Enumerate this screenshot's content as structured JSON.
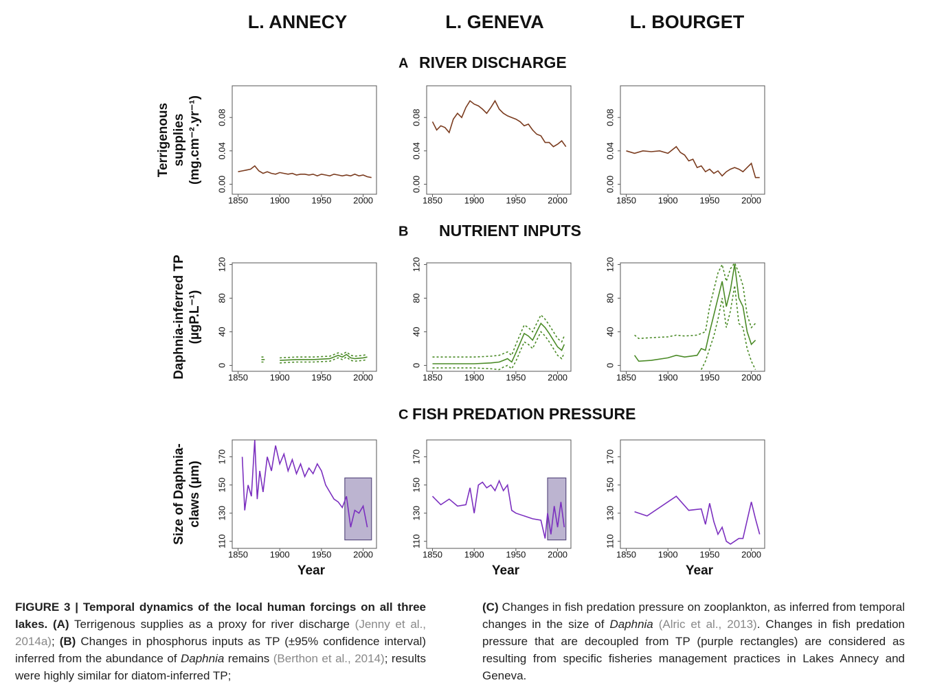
{
  "column_titles": [
    "L. ANNECY",
    "L. GENEVA",
    "L. BOURGET"
  ],
  "sections": [
    {
      "letter": "A",
      "title": "RIVER DISCHARGE"
    },
    {
      "letter": "B",
      "title": "NUTRIENT INPUTS"
    },
    {
      "letter": "C",
      "title": "FISH PREDATION PRESSURE"
    }
  ],
  "chart_data": [
    {
      "type": "line",
      "ylabel": [
        "Terrigenous",
        "supplies",
        "(mg.cm⁻².yr⁻¹)"
      ],
      "x": [
        1850,
        1855,
        1860,
        1865,
        1870,
        1875,
        1880,
        1885,
        1890,
        1895,
        1900,
        1905,
        1910,
        1915,
        1920,
        1925,
        1930,
        1935,
        1940,
        1945,
        1950,
        1955,
        1960,
        1965,
        1970,
        1975,
        1980,
        1985,
        1990,
        1995,
        2000,
        2005,
        2010
      ],
      "series": [
        {
          "color": "#7a3b1e",
          "values": [
            0.015,
            0.016,
            0.017,
            0.018,
            0.022,
            0.016,
            0.013,
            0.015,
            0.013,
            0.012,
            0.014,
            0.013,
            0.012,
            0.013,
            0.011,
            0.012,
            0.012,
            0.011,
            0.012,
            0.01,
            0.012,
            0.011,
            0.01,
            0.012,
            0.011,
            0.01,
            0.011,
            0.01,
            0.012,
            0.01,
            0.011,
            0.009,
            0.008
          ]
        }
      ],
      "xlim": [
        1843,
        2016
      ],
      "ylim": [
        -0.012,
        0.118
      ],
      "xticks": [
        1850,
        1900,
        1950,
        2000
      ],
      "yticks": [
        {
          "value": 0,
          "label": "0.00"
        },
        {
          "value": 0.04,
          "label": "0.04"
        },
        {
          "value": 0.08,
          "label": "0.08"
        }
      ]
    },
    {
      "type": "line",
      "x": [
        1850,
        1855,
        1860,
        1865,
        1870,
        1875,
        1880,
        1885,
        1890,
        1895,
        1900,
        1905,
        1910,
        1915,
        1920,
        1925,
        1930,
        1935,
        1940,
        1945,
        1950,
        1955,
        1960,
        1965,
        1970,
        1975,
        1980,
        1985,
        1990,
        1995,
        2000,
        2005,
        2010
      ],
      "series": [
        {
          "color": "#7a3b1e",
          "values": [
            0.075,
            0.065,
            0.07,
            0.068,
            0.062,
            0.078,
            0.085,
            0.08,
            0.092,
            0.1,
            0.096,
            0.094,
            0.09,
            0.085,
            0.092,
            0.1,
            0.09,
            0.085,
            0.082,
            0.08,
            0.078,
            0.075,
            0.07,
            0.072,
            0.065,
            0.06,
            0.058,
            0.05,
            0.05,
            0.045,
            0.048,
            0.052,
            0.045
          ]
        }
      ],
      "xlim": [
        1843,
        2016
      ],
      "ylim": [
        -0.012,
        0.118
      ],
      "xticks": [
        1850,
        1900,
        1950,
        2000
      ],
      "yticks": [
        {
          "value": 0,
          "label": "0.00"
        },
        {
          "value": 0.04,
          "label": "0.04"
        },
        {
          "value": 0.08,
          "label": "0.08"
        }
      ]
    },
    {
      "type": "line",
      "x": [
        1850,
        1860,
        1870,
        1880,
        1890,
        1900,
        1910,
        1915,
        1920,
        1925,
        1930,
        1935,
        1940,
        1945,
        1950,
        1955,
        1960,
        1965,
        1970,
        1975,
        1980,
        1985,
        1990,
        1995,
        2000,
        2005,
        2010
      ],
      "series": [
        {
          "color": "#7a3b1e",
          "values": [
            0.04,
            0.037,
            0.04,
            0.039,
            0.04,
            0.037,
            0.045,
            0.038,
            0.035,
            0.028,
            0.03,
            0.02,
            0.022,
            0.015,
            0.018,
            0.013,
            0.016,
            0.01,
            0.015,
            0.018,
            0.02,
            0.018,
            0.015,
            0.02,
            0.025,
            0.008,
            0.008
          ]
        }
      ],
      "xlim": [
        1843,
        2016
      ],
      "ylim": [
        -0.012,
        0.118
      ],
      "xticks": [
        1850,
        1900,
        1950,
        2000
      ],
      "yticks": [
        {
          "value": 0,
          "label": "0.00"
        },
        {
          "value": 0.04,
          "label": "0.04"
        },
        {
          "value": 0.08,
          "label": "0.08"
        }
      ]
    },
    {
      "type": "line",
      "ylabel": [
        "Daphnia-inferred TP",
        "(µgP.L⁻¹)"
      ],
      "x": [
        1878,
        1882,
        1890,
        1900,
        1920,
        1940,
        1960,
        1970,
        1975,
        1980,
        1985,
        1990,
        2000,
        2005
      ],
      "series": [
        {
          "color": "#4a8a26",
          "values": [
            7,
            7,
            null,
            6,
            7,
            7,
            8,
            12,
            10,
            13,
            9,
            8,
            9,
            10
          ]
        },
        {
          "color": "#4a8a26",
          "dashed": true,
          "values": [
            10,
            10,
            null,
            9,
            10,
            10,
            11,
            15,
            13,
            16,
            12,
            11,
            12,
            13
          ]
        },
        {
          "color": "#4a8a26",
          "dashed": true,
          "values": [
            4,
            4,
            null,
            3,
            4,
            4,
            5,
            9,
            7,
            10,
            6,
            5,
            6,
            7
          ]
        }
      ],
      "xlim": [
        1843,
        2016
      ],
      "ylim": [
        -7,
        122
      ],
      "xticks": [
        1850,
        1900,
        1950,
        2000
      ],
      "yticks": [
        0,
        40,
        80,
        120
      ]
    },
    {
      "type": "line",
      "x": [
        1850,
        1900,
        1920,
        1930,
        1935,
        1940,
        1945,
        1950,
        1960,
        1965,
        1970,
        1975,
        1980,
        1985,
        1990,
        1995,
        2000,
        2005,
        2008
      ],
      "series": [
        {
          "color": "#4a8a26",
          "values": [
            2,
            2,
            3,
            4,
            6,
            8,
            4,
            15,
            38,
            35,
            30,
            40,
            50,
            45,
            38,
            30,
            22,
            18,
            25
          ]
        },
        {
          "color": "#4a8a26",
          "dashed": true,
          "values": [
            10,
            10,
            11,
            12,
            14,
            16,
            12,
            25,
            48,
            45,
            40,
            50,
            60,
            55,
            48,
            40,
            32,
            28,
            35
          ]
        },
        {
          "color": "#4a8a26",
          "dashed": true,
          "values": [
            -3,
            -3,
            -4,
            -5,
            -2,
            0,
            -4,
            5,
            28,
            25,
            20,
            30,
            40,
            35,
            28,
            20,
            12,
            8,
            15
          ]
        }
      ],
      "xlim": [
        1843,
        2016
      ],
      "ylim": [
        -7,
        122
      ],
      "xticks": [
        1850,
        1900,
        1950,
        2000
      ],
      "yticks": [
        0,
        40,
        80,
        120
      ]
    },
    {
      "type": "line",
      "x": [
        1860,
        1865,
        1880,
        1900,
        1910,
        1920,
        1935,
        1940,
        1945,
        1950,
        1955,
        1960,
        1965,
        1970,
        1975,
        1980,
        1985,
        1990,
        1995,
        2000,
        2005
      ],
      "series": [
        {
          "color": "#4a8a26",
          "values": [
            12,
            5,
            6,
            9,
            12,
            10,
            12,
            20,
            18,
            40,
            60,
            80,
            100,
            70,
            90,
            120,
            80,
            70,
            40,
            25,
            30
          ]
        },
        {
          "color": "#4a8a26",
          "dashed": true,
          "values": [
            36,
            32,
            33,
            34,
            36,
            35,
            36,
            38,
            40,
            70,
            90,
            110,
            120,
            100,
            115,
            122,
            110,
            95,
            60,
            45,
            50
          ]
        },
        {
          "color": "#4a8a26",
          "dashed": true,
          "values": [
            null,
            null,
            null,
            null,
            null,
            null,
            null,
            -5,
            5,
            20,
            35,
            55,
            80,
            45,
            65,
            95,
            50,
            45,
            20,
            5,
            -5
          ]
        }
      ],
      "xlim": [
        1843,
        2016
      ],
      "ylim": [
        -7,
        122
      ],
      "xticks": [
        1850,
        1900,
        1950,
        2000
      ],
      "yticks": [
        0,
        40,
        80,
        120
      ]
    },
    {
      "type": "line",
      "ylabel": [
        "Size of Daphnia-",
        "claws (µm)"
      ],
      "xlabel": "Year",
      "x": [
        1855,
        1858,
        1862,
        1866,
        1870,
        1873,
        1876,
        1880,
        1885,
        1890,
        1895,
        1900,
        1905,
        1910,
        1915,
        1920,
        1925,
        1930,
        1935,
        1940,
        1945,
        1950,
        1955,
        1960,
        1965,
        1970,
        1975,
        1980,
        1985,
        1990,
        1995,
        2000,
        2005
      ],
      "series": [
        {
          "color": "#7b2fbf",
          "values": [
            170,
            132,
            150,
            142,
            182,
            140,
            160,
            145,
            170,
            160,
            178,
            165,
            172,
            160,
            168,
            158,
            165,
            156,
            162,
            158,
            165,
            160,
            150,
            145,
            140,
            138,
            134,
            142,
            120,
            132,
            130,
            135,
            120
          ]
        }
      ],
      "highlight": {
        "x": [
          1978,
          2010
        ],
        "y": [
          111,
          155
        ],
        "color": "#8f82b0"
      },
      "xlim": [
        1843,
        2016
      ],
      "ylim": [
        105,
        182
      ],
      "xticks": [
        1850,
        1900,
        1950,
        2000
      ],
      "yticks": [
        110,
        130,
        150,
        170
      ]
    },
    {
      "type": "line",
      "xlabel": "Year",
      "x": [
        1850,
        1860,
        1870,
        1880,
        1890,
        1895,
        1900,
        1905,
        1910,
        1915,
        1920,
        1925,
        1930,
        1935,
        1940,
        1945,
        1950,
        1960,
        1970,
        1980,
        1985,
        1988,
        1992,
        1996,
        2000,
        2004,
        2008
      ],
      "series": [
        {
          "color": "#7b2fbf",
          "values": [
            142,
            136,
            140,
            135,
            136,
            148,
            130,
            150,
            152,
            148,
            150,
            146,
            153,
            146,
            150,
            132,
            130,
            128,
            126,
            125,
            112,
            130,
            115,
            135,
            120,
            138,
            120
          ]
        }
      ],
      "highlight": {
        "x": [
          1988,
          2010
        ],
        "y": [
          111,
          155
        ],
        "color": "#8f82b0"
      },
      "xlim": [
        1843,
        2016
      ],
      "ylim": [
        105,
        182
      ],
      "xticks": [
        1850,
        1900,
        1950,
        2000
      ],
      "yticks": [
        110,
        130,
        150,
        170
      ]
    },
    {
      "type": "line",
      "xlabel": "Year",
      "x": [
        1860,
        1875,
        1910,
        1925,
        1940,
        1945,
        1950,
        1955,
        1960,
        1965,
        1970,
        1975,
        1980,
        1985,
        1990,
        2000,
        2005,
        2010
      ],
      "series": [
        {
          "color": "#7b2fbf",
          "values": [
            131,
            128,
            142,
            132,
            133,
            122,
            137,
            124,
            115,
            120,
            110,
            108,
            110,
            112,
            112,
            138,
            126,
            115
          ]
        }
      ],
      "xlim": [
        1843,
        2016
      ],
      "ylim": [
        105,
        182
      ],
      "xticks": [
        1850,
        1900,
        1950,
        2000
      ],
      "yticks": [
        110,
        130,
        150,
        170
      ]
    }
  ],
  "caption": {
    "left": [
      {
        "style": "b",
        "text": "FIGURE 3 | Temporal dynamics of the local human forcings on all three lakes. (A)"
      },
      {
        "style": "n",
        "text": " Terrigenous supplies as a proxy for river discharge "
      },
      {
        "style": "ref",
        "text": "(Jenny et al., 2014a)"
      },
      {
        "style": "n",
        "text": "; "
      },
      {
        "style": "b",
        "text": "(B)"
      },
      {
        "style": "n",
        "text": " Changes in phosphorus inputs as TP (±95% confidence interval) inferred from the abundance of "
      },
      {
        "style": "i",
        "text": "Daphnia"
      },
      {
        "style": "n",
        "text": " remains "
      },
      {
        "style": "ref",
        "text": "(Berthon et al., 2014)"
      },
      {
        "style": "n",
        "text": "; results were highly similar for diatom-inferred TP;"
      }
    ],
    "right": [
      {
        "style": "b",
        "text": "(C)"
      },
      {
        "style": "n",
        "text": " Changes in fish predation pressure on zooplankton, as inferred from temporal changes in the size of "
      },
      {
        "style": "i",
        "text": "Daphnia"
      },
      {
        "style": "ref",
        "text": " (Alric et al., 2013)"
      },
      {
        "style": "n",
        "text": ". Changes in fish predation pressure that are decoupled from TP (purple rectangles) are considered as resulting from specific fisheries management practices in Lakes Annecy and Geneva."
      }
    ]
  }
}
